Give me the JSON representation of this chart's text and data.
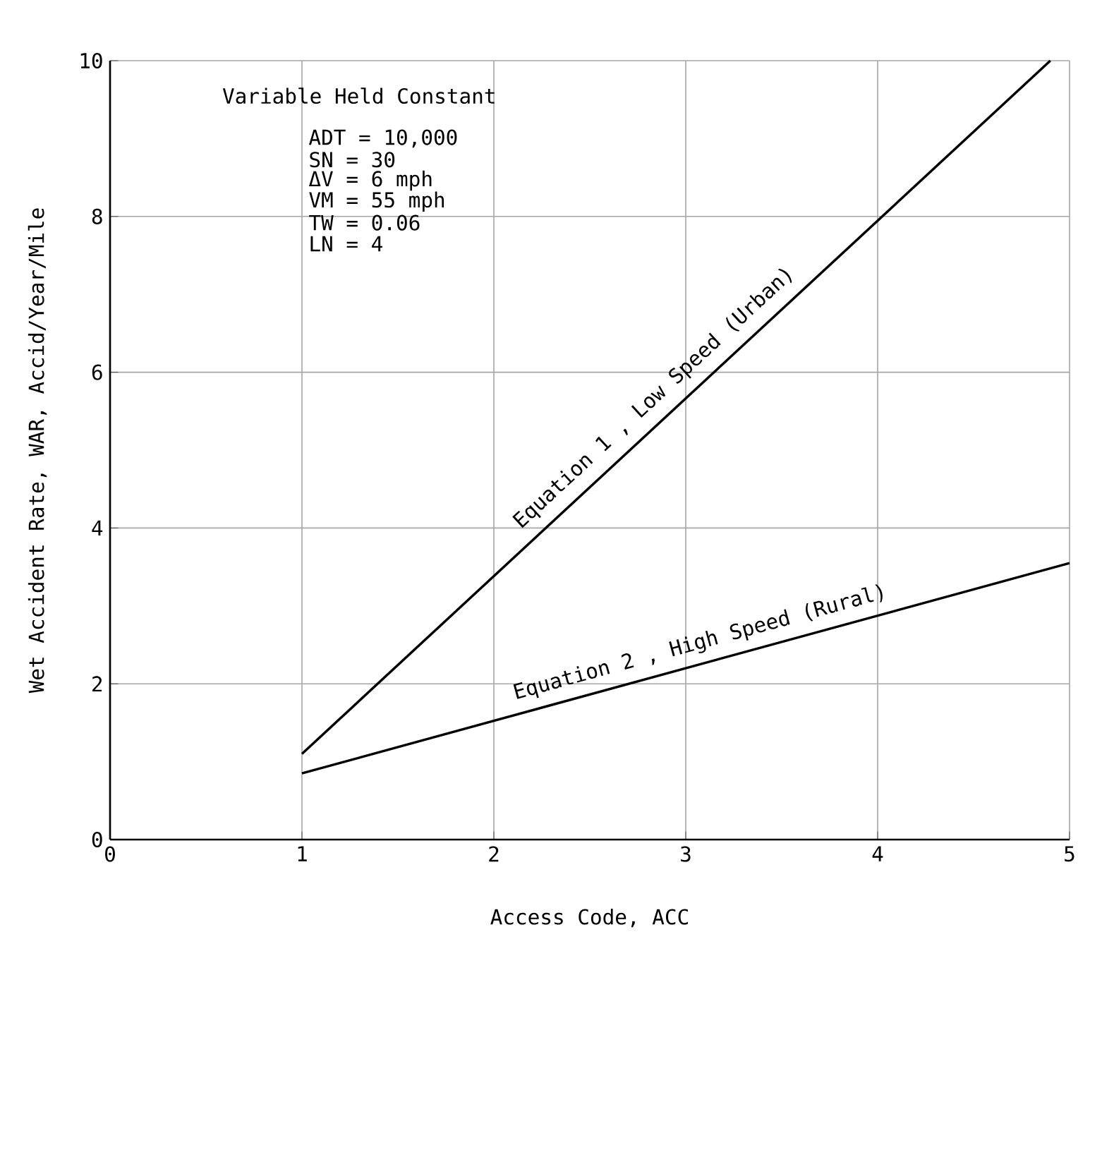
{
  "chart_data": {
    "type": "line",
    "xlabel": "Access Code, ACC",
    "ylabel": "Wet Accident Rate, WAR, Accid/Year/Mile",
    "xlim": [
      0,
      5
    ],
    "ylim": [
      0,
      10
    ],
    "xticks": [
      0,
      1,
      2,
      3,
      4,
      5
    ],
    "yticks": [
      0,
      2,
      4,
      6,
      8,
      10
    ],
    "grid": true,
    "marker": "none",
    "line_style": "solid",
    "series": [
      {
        "color": "#000000",
        "x": [
          1,
          4.9
        ],
        "values": [
          1.1,
          10
        ]
      },
      {
        "color": "#000000",
        "x": [
          1,
          5
        ],
        "values": [
          0.85,
          3.55
        ]
      }
    ],
    "annotations": [
      "Variable Held Constant",
      "ADT = 10,000",
      "SN = 30",
      "ΔV = 6 mph",
      "VM = 55 mph",
      "TW = 0.06",
      "LN = 4",
      {
        "text": "Equation 1 , Low Speed (Urban)",
        "x": 2.9,
        "y": 5.5
      },
      {
        "text": "Equation 2 , High Speed (Rural)",
        "x": 3.1,
        "y": 2.3
      }
    ]
  }
}
